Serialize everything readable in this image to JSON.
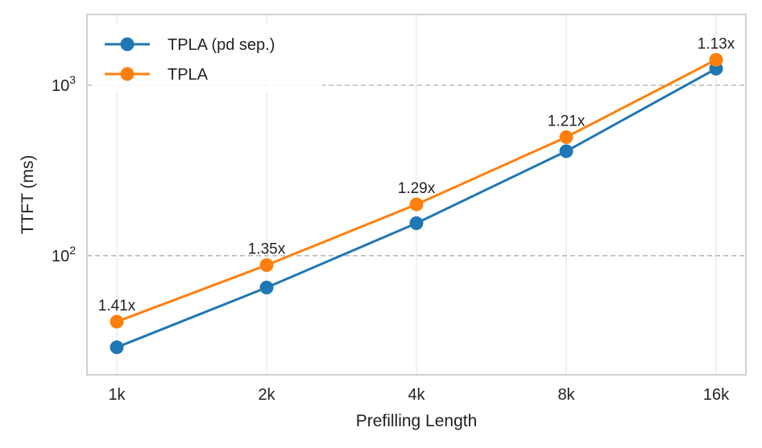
{
  "chart_data": {
    "type": "line",
    "title": "",
    "xlabel": "Prefilling Length",
    "ylabel": "TTFT (ms)",
    "yscale": "log",
    "ylim": [
      20,
      2600
    ],
    "grid": true,
    "legend_position": "top-left",
    "categories": [
      "1k",
      "2k",
      "4k",
      "8k",
      "16k"
    ],
    "y_ticks": [
      {
        "value": 100,
        "base": "10",
        "exp": "2"
      },
      {
        "value": 1000,
        "base": "10",
        "exp": "3"
      }
    ],
    "series": [
      {
        "name": "TPLA (pd sep.)",
        "color": "#1f77b4",
        "values": [
          29,
          65,
          155,
          410,
          1250
        ]
      },
      {
        "name": "TPLA",
        "color": "#ff7f0e",
        "values": [
          41,
          88,
          200,
          496,
          1410
        ]
      }
    ],
    "annotations": [
      "1.41x",
      "1.35x",
      "1.29x",
      "1.21x",
      "1.13x"
    ]
  }
}
